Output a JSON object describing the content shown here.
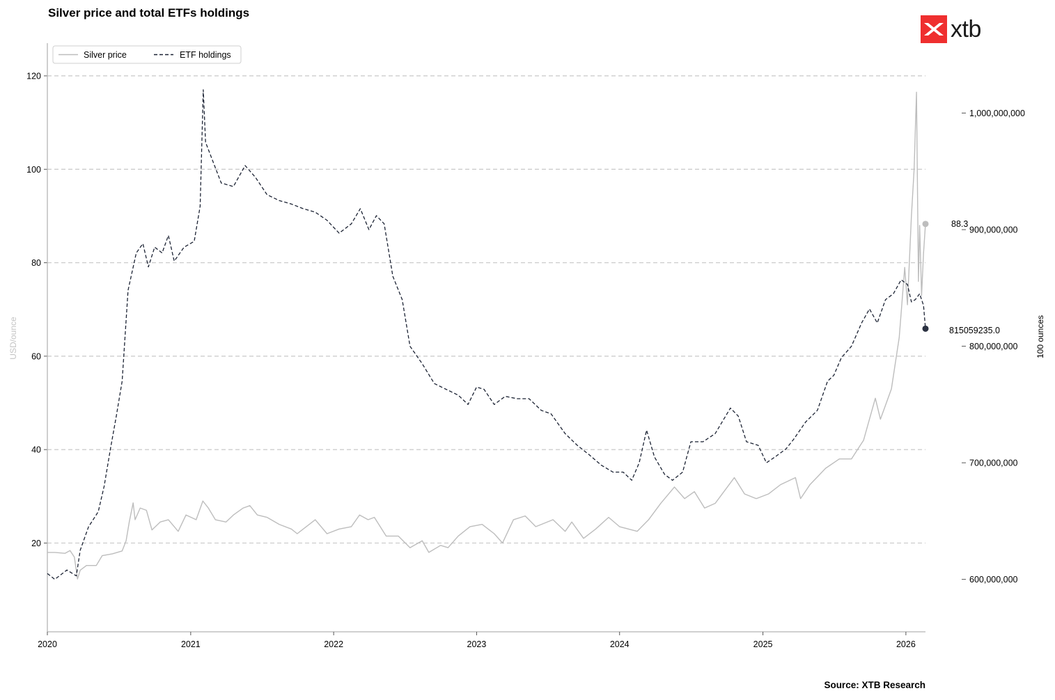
{
  "header": {
    "title": "Silver price and total ETFs holdings",
    "brand": "xtb",
    "source": "Source: XTB Research"
  },
  "chart_data": {
    "type": "line",
    "title": "Silver price and total ETFs holdings",
    "ylabel_left": "USD/ounce",
    "ylabel_right": "100 ounces",
    "x_ticks": [
      "2020",
      "2021",
      "2022",
      "2023",
      "2024",
      "2025",
      "2026"
    ],
    "xlim": [
      "2020-01-01",
      "2026-02-20"
    ],
    "ylim_left": [
      1,
      127
    ],
    "ylim_right": [
      555000000,
      1060000000
    ],
    "y_ticks_left": [
      20,
      40,
      60,
      80,
      100,
      120
    ],
    "y_ticks_right": [
      600000000,
      700000000,
      800000000,
      900000000,
      1000000000
    ],
    "y_tick_labels_right": [
      "600,000,000",
      "700,000,000",
      "800,000,000",
      "900,000,000",
      "1,000,000,000"
    ],
    "grid": "horizontal dashed",
    "legend_position": "top-left",
    "colors": {
      "silver": "#bdbdbd",
      "etf": "#1b2233",
      "grid": "#c8c8c8",
      "axis": "#b5b5b5",
      "brand": "#ef2f2f"
    },
    "last_value_labels": {
      "silver": "88.3",
      "etf": "815059235.0"
    },
    "series": [
      {
        "name": "Silver price",
        "axis": "left",
        "style": "solid",
        "points": [
          [
            "2020-01-01",
            18.0
          ],
          [
            "2020-01-20",
            18.0
          ],
          [
            "2020-02-15",
            17.8
          ],
          [
            "2020-02-28",
            18.4
          ],
          [
            "2020-03-10",
            17.0
          ],
          [
            "2020-03-18",
            12.3
          ],
          [
            "2020-03-25",
            14.2
          ],
          [
            "2020-04-10",
            15.2
          ],
          [
            "2020-05-05",
            15.2
          ],
          [
            "2020-05-20",
            17.3
          ],
          [
            "2020-06-15",
            17.7
          ],
          [
            "2020-07-10",
            18.3
          ],
          [
            "2020-07-20",
            20.5
          ],
          [
            "2020-07-28",
            24.5
          ],
          [
            "2020-08-07",
            28.6
          ],
          [
            "2020-08-12",
            25.0
          ],
          [
            "2020-08-25",
            27.5
          ],
          [
            "2020-09-10",
            27.0
          ],
          [
            "2020-09-24",
            22.8
          ],
          [
            "2020-10-15",
            24.5
          ],
          [
            "2020-11-05",
            25.0
          ],
          [
            "2020-11-30",
            22.5
          ],
          [
            "2020-12-20",
            26.0
          ],
          [
            "2021-01-15",
            25.0
          ],
          [
            "2021-02-01",
            29.0
          ],
          [
            "2021-02-15",
            27.5
          ],
          [
            "2021-03-05",
            25.0
          ],
          [
            "2021-04-01",
            24.5
          ],
          [
            "2021-04-20",
            26.0
          ],
          [
            "2021-05-15",
            27.5
          ],
          [
            "2021-06-01",
            28.0
          ],
          [
            "2021-06-20",
            26.0
          ],
          [
            "2021-07-15",
            25.5
          ],
          [
            "2021-08-15",
            24.0
          ],
          [
            "2021-09-15",
            23.0
          ],
          [
            "2021-09-30",
            22.0
          ],
          [
            "2021-11-15",
            25.0
          ],
          [
            "2021-12-15",
            22.0
          ],
          [
            "2022-01-15",
            23.0
          ],
          [
            "2022-02-15",
            23.5
          ],
          [
            "2022-03-08",
            26.0
          ],
          [
            "2022-03-30",
            25.0
          ],
          [
            "2022-04-15",
            25.5
          ],
          [
            "2022-05-15",
            21.5
          ],
          [
            "2022-06-15",
            21.5
          ],
          [
            "2022-07-15",
            19.0
          ],
          [
            "2022-08-15",
            20.5
          ],
          [
            "2022-09-01",
            18.0
          ],
          [
            "2022-10-01",
            19.5
          ],
          [
            "2022-10-20",
            19.0
          ],
          [
            "2022-11-15",
            21.5
          ],
          [
            "2022-12-15",
            23.5
          ],
          [
            "2023-01-15",
            24.0
          ],
          [
            "2023-02-15",
            22.0
          ],
          [
            "2023-03-08",
            20.0
          ],
          [
            "2023-04-05",
            25.0
          ],
          [
            "2023-05-05",
            25.8
          ],
          [
            "2023-06-01",
            23.5
          ],
          [
            "2023-07-15",
            25.0
          ],
          [
            "2023-08-15",
            22.5
          ],
          [
            "2023-09-01",
            24.5
          ],
          [
            "2023-10-01",
            21.0
          ],
          [
            "2023-11-01",
            23.0
          ],
          [
            "2023-12-04",
            25.5
          ],
          [
            "2024-01-01",
            23.5
          ],
          [
            "2024-02-15",
            22.5
          ],
          [
            "2024-03-15",
            25.0
          ],
          [
            "2024-04-15",
            28.5
          ],
          [
            "2024-05-20",
            32.0
          ],
          [
            "2024-06-15",
            29.5
          ],
          [
            "2024-07-10",
            31.0
          ],
          [
            "2024-08-05",
            27.5
          ],
          [
            "2024-09-01",
            28.5
          ],
          [
            "2024-10-20",
            34.0
          ],
          [
            "2024-11-15",
            30.5
          ],
          [
            "2024-12-15",
            29.5
          ],
          [
            "2025-01-15",
            30.5
          ],
          [
            "2025-02-15",
            32.5
          ],
          [
            "2025-03-25",
            34.0
          ],
          [
            "2025-04-07",
            29.5
          ],
          [
            "2025-05-01",
            32.5
          ],
          [
            "2025-06-10",
            36.0
          ],
          [
            "2025-07-15",
            38.0
          ],
          [
            "2025-08-15",
            38.0
          ],
          [
            "2025-09-15",
            42.0
          ],
          [
            "2025-10-15",
            51.0
          ],
          [
            "2025-10-28",
            46.5
          ],
          [
            "2025-11-25",
            53.0
          ],
          [
            "2025-12-15",
            64.0
          ],
          [
            "2025-12-29",
            79.0
          ],
          [
            "2026-01-05",
            71.0
          ],
          [
            "2026-01-15",
            90.0
          ],
          [
            "2026-01-22",
            100.0
          ],
          [
            "2026-01-28",
            116.5
          ],
          [
            "2026-02-02",
            76.0
          ],
          [
            "2026-02-05",
            88.0
          ],
          [
            "2026-02-10",
            73.0
          ],
          [
            "2026-02-15",
            82.0
          ],
          [
            "2026-02-20",
            88.3
          ]
        ]
      },
      {
        "name": "ETF holdings",
        "axis": "right",
        "style": "dashed",
        "points": [
          [
            "2020-01-01",
            605000000
          ],
          [
            "2020-01-20",
            600000000
          ],
          [
            "2020-02-20",
            608000000
          ],
          [
            "2020-03-15",
            603000000
          ],
          [
            "2020-03-25",
            625000000
          ],
          [
            "2020-04-15",
            645000000
          ],
          [
            "2020-05-10",
            658000000
          ],
          [
            "2020-05-25",
            680000000
          ],
          [
            "2020-06-10",
            712000000
          ],
          [
            "2020-06-25",
            740000000
          ],
          [
            "2020-07-10",
            770000000
          ],
          [
            "2020-07-25",
            848000000
          ],
          [
            "2020-08-15",
            880000000
          ],
          [
            "2020-09-01",
            888000000
          ],
          [
            "2020-09-15",
            868000000
          ],
          [
            "2020-10-01",
            885000000
          ],
          [
            "2020-10-20",
            880000000
          ],
          [
            "2020-11-05",
            895000000
          ],
          [
            "2020-11-20",
            873000000
          ],
          [
            "2020-12-15",
            885000000
          ],
          [
            "2021-01-10",
            890000000
          ],
          [
            "2021-01-25",
            920000000
          ],
          [
            "2021-02-02",
            1020000000
          ],
          [
            "2021-02-08",
            975000000
          ],
          [
            "2021-02-25",
            960000000
          ],
          [
            "2021-03-20",
            940000000
          ],
          [
            "2021-04-20",
            937000000
          ],
          [
            "2021-05-20",
            955000000
          ],
          [
            "2021-06-15",
            945000000
          ],
          [
            "2021-07-15",
            930000000
          ],
          [
            "2021-08-15",
            925000000
          ],
          [
            "2021-09-15",
            922000000
          ],
          [
            "2021-10-15",
            918000000
          ],
          [
            "2021-11-15",
            915000000
          ],
          [
            "2021-12-15",
            908000000
          ],
          [
            "2022-01-15",
            897000000
          ],
          [
            "2022-02-15",
            905000000
          ],
          [
            "2022-03-10",
            918000000
          ],
          [
            "2022-04-01",
            900000000
          ],
          [
            "2022-04-20",
            912000000
          ],
          [
            "2022-05-10",
            905000000
          ],
          [
            "2022-06-01",
            860000000
          ],
          [
            "2022-06-25",
            840000000
          ],
          [
            "2022-07-15",
            800000000
          ],
          [
            "2022-08-15",
            785000000
          ],
          [
            "2022-09-15",
            768000000
          ],
          [
            "2022-10-15",
            763000000
          ],
          [
            "2022-11-15",
            758000000
          ],
          [
            "2022-12-10",
            750000000
          ],
          [
            "2023-01-01",
            765000000
          ],
          [
            "2023-01-20",
            763000000
          ],
          [
            "2023-02-15",
            750000000
          ],
          [
            "2023-03-15",
            757000000
          ],
          [
            "2023-04-15",
            755000000
          ],
          [
            "2023-05-15",
            755000000
          ],
          [
            "2023-06-15",
            745000000
          ],
          [
            "2023-07-10",
            742000000
          ],
          [
            "2023-08-15",
            725000000
          ],
          [
            "2023-09-15",
            715000000
          ],
          [
            "2023-10-15",
            707000000
          ],
          [
            "2023-11-15",
            698000000
          ],
          [
            "2023-12-15",
            692000000
          ],
          [
            "2024-01-10",
            692000000
          ],
          [
            "2024-02-01",
            685000000
          ],
          [
            "2024-02-20",
            700000000
          ],
          [
            "2024-03-10",
            728000000
          ],
          [
            "2024-03-30",
            705000000
          ],
          [
            "2024-04-25",
            690000000
          ],
          [
            "2024-05-15",
            685000000
          ],
          [
            "2024-06-10",
            692000000
          ],
          [
            "2024-07-01",
            718000000
          ],
          [
            "2024-08-01",
            718000000
          ],
          [
            "2024-09-01",
            725000000
          ],
          [
            "2024-10-10",
            747000000
          ],
          [
            "2024-10-30",
            740000000
          ],
          [
            "2024-11-20",
            718000000
          ],
          [
            "2024-12-20",
            715000000
          ],
          [
            "2025-01-10",
            700000000
          ],
          [
            "2025-02-01",
            705000000
          ],
          [
            "2025-03-01",
            712000000
          ],
          [
            "2025-03-20",
            720000000
          ],
          [
            "2025-04-20",
            735000000
          ],
          [
            "2025-05-20",
            745000000
          ],
          [
            "2025-06-15",
            770000000
          ],
          [
            "2025-07-01",
            775000000
          ],
          [
            "2025-07-20",
            790000000
          ],
          [
            "2025-08-15",
            800000000
          ],
          [
            "2025-09-10",
            820000000
          ],
          [
            "2025-09-30",
            832000000
          ],
          [
            "2025-10-20",
            820000000
          ],
          [
            "2025-11-10",
            840000000
          ],
          [
            "2025-11-30",
            845000000
          ],
          [
            "2025-12-20",
            857000000
          ],
          [
            "2026-01-05",
            853000000
          ],
          [
            "2026-01-15",
            838000000
          ],
          [
            "2026-01-25",
            840000000
          ],
          [
            "2026-02-05",
            845000000
          ],
          [
            "2026-02-15",
            835000000
          ],
          [
            "2026-02-20",
            815059235
          ]
        ]
      }
    ]
  }
}
